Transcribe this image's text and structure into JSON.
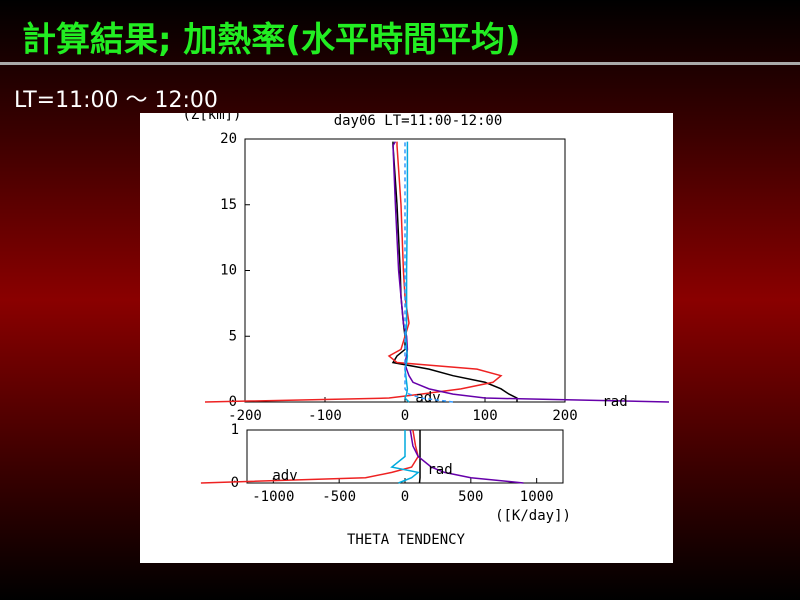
{
  "slide": {
    "title": "計算結果; 加熱率(水平時間平均)",
    "subtitle": "LT=11:00 〜 12:00"
  },
  "figure": {
    "title": "day06 LT=11:00-12:00",
    "ylabel": "(Z[km])",
    "xlabel": "([K/day])",
    "caption": "THETA TENDENCY"
  },
  "chart_data": [
    {
      "type": "line",
      "orientation": "horizontal",
      "y": [
        0,
        0.3,
        0.6,
        1,
        1.5,
        2,
        2.5,
        3,
        3.5,
        4,
        5,
        6,
        8,
        10,
        15,
        19.5,
        19.8
      ],
      "series": [
        {
          "color": "#000000",
          "values": [
            140,
            140,
            130,
            120,
            100,
            60,
            30,
            -15,
            -10,
            0,
            0,
            -2,
            -5,
            -6,
            -10,
            -15,
            -15
          ]
        },
        {
          "name": "adv",
          "color": "#ee2222",
          "values": [
            -250,
            -20,
            20,
            70,
            110,
            120,
            90,
            -10,
            -20,
            -5,
            0,
            5,
            0,
            -2,
            -5,
            -10,
            -10
          ]
        },
        {
          "name": "rad",
          "color": "#6600aa",
          "values": [
            330,
            100,
            60,
            30,
            10,
            5,
            2,
            0,
            2,
            3,
            2,
            -2,
            -5,
            -8,
            -12,
            -15,
            -12
          ]
        },
        {
          "color": "#00aadd",
          "values": [
            5,
            0,
            2,
            3,
            2,
            1,
            0,
            2,
            3,
            2,
            1,
            2,
            2,
            2,
            3,
            3,
            3
          ]
        },
        {
          "color": "#3399ff",
          "dash": true,
          "values": [
            60,
            20,
            5,
            0,
            0,
            0,
            0,
            0,
            0,
            0,
            0,
            0,
            0,
            0,
            0,
            0,
            0
          ]
        }
      ],
      "xlim": [
        -200,
        200
      ],
      "ylim": [
        0,
        20
      ],
      "xticks": [
        -200,
        -100,
        0,
        100,
        200
      ],
      "yticks": [
        0,
        5,
        10,
        15,
        20
      ]
    },
    {
      "type": "line",
      "orientation": "horizontal",
      "y": [
        0,
        0.1,
        0.2,
        0.3,
        0.5,
        0.7,
        1
      ],
      "series": [
        {
          "color": "#000000",
          "values": [
            110,
            114,
            114,
            114,
            114,
            114,
            114
          ]
        },
        {
          "name": "adv",
          "color": "#ee2222",
          "values": [
            -1550,
            -300,
            -100,
            50,
            100,
            80,
            60
          ]
        },
        {
          "name": "rad",
          "color": "#6600aa",
          "values": [
            900,
            500,
            300,
            200,
            100,
            60,
            40
          ]
        },
        {
          "color": "#00aadd",
          "values": [
            -50,
            50,
            100,
            -100,
            0,
            0,
            0
          ]
        }
      ],
      "xlim": [
        -1200,
        1200
      ],
      "ylim": [
        0,
        1
      ],
      "xticks": [
        -1000,
        -500,
        0,
        500,
        1000
      ],
      "yticks": [
        0,
        1
      ]
    }
  ]
}
